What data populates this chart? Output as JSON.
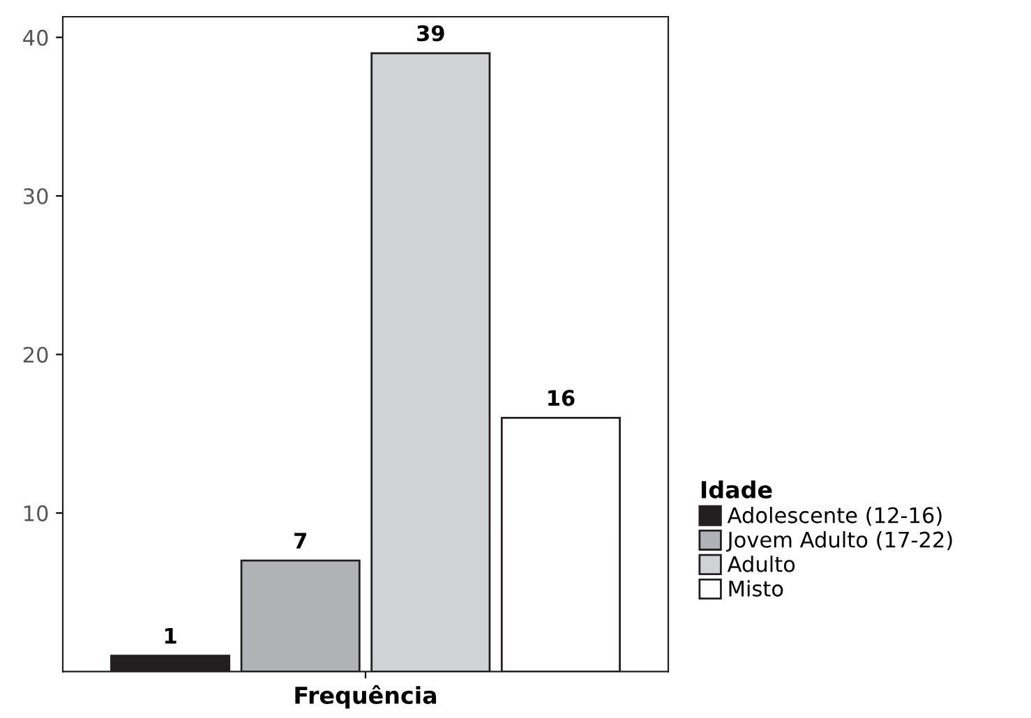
{
  "chart_data": {
    "type": "bar",
    "categories": [
      "Frequência"
    ],
    "series": [
      {
        "name": "Adolescente (12-16)",
        "color": "#231f20",
        "values": [
          1
        ]
      },
      {
        "name": "Jovem Adulto (17-22)",
        "color": "#b1b2b5",
        "values": [
          7
        ]
      },
      {
        "name": "Adulto",
        "color": "#d1d2d4",
        "values": [
          39
        ]
      },
      {
        "name": "Misto",
        "color": "#ffffff",
        "values": [
          16
        ]
      }
    ],
    "legend_title": "Idade",
    "legend": "right",
    "data_labels": true,
    "grid": false,
    "ylim": [
      0,
      41.3
    ],
    "yticks": [
      10,
      20,
      30,
      40
    ]
  }
}
